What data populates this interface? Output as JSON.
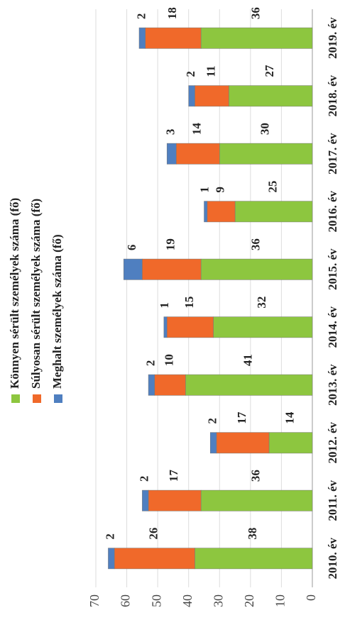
{
  "chart_data": {
    "type": "stacked_bar",
    "categories": [
      "2010. év",
      "2011. év",
      "2012. év",
      "2013. év",
      "2014. év",
      "2015. év",
      "2016. év",
      "2017. év",
      "2018. év",
      "2019. év"
    ],
    "series": [
      {
        "name": "Könnyen sérült személyek száma (fő)",
        "color": "#8dc63f",
        "values": [
          38,
          36,
          14,
          41,
          32,
          36,
          25,
          30,
          27,
          36
        ]
      },
      {
        "name": "Súlyosan sérült személyek száma (fő)",
        "color": "#f0692a",
        "values": [
          26,
          17,
          17,
          10,
          15,
          19,
          9,
          14,
          11,
          18
        ]
      },
      {
        "name": "Meghalt személyek száma (fő)",
        "color": "#4f7fc0",
        "values": [
          2,
          2,
          2,
          2,
          1,
          6,
          1,
          3,
          2,
          2
        ]
      }
    ],
    "ylim": [
      0,
      70
    ],
    "yticks": [
      0,
      10,
      20,
      30,
      40,
      50,
      60,
      70
    ]
  }
}
